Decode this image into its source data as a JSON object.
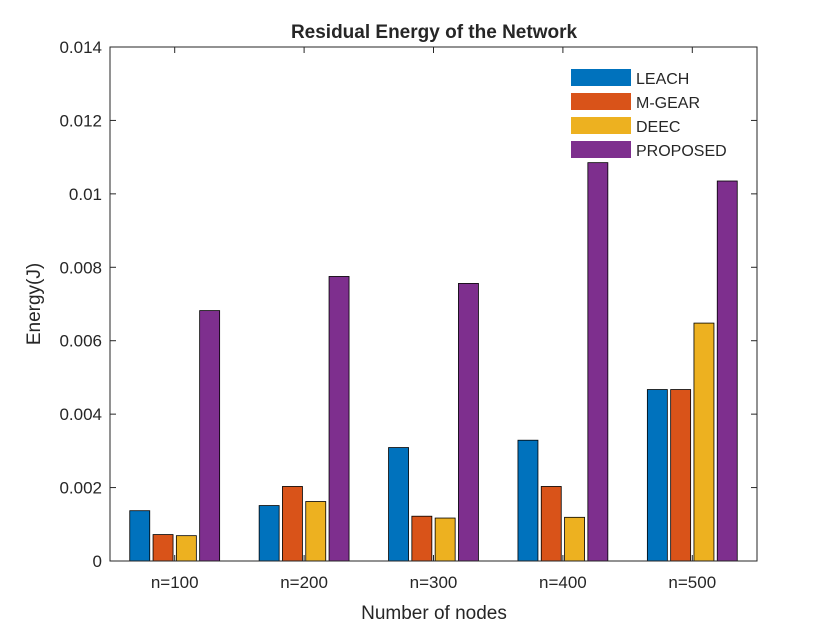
{
  "chart_data": {
    "type": "bar",
    "title": "Residual Energy of the Network",
    "xlabel": "Number of nodes",
    "ylabel": "Energy(J)",
    "categories": [
      "n=100",
      "n=200",
      "n=300",
      "n=400",
      "n=500"
    ],
    "ylim": [
      0,
      0.014
    ],
    "yticks": [
      "0",
      "0.002",
      "0.004",
      "0.006",
      "0.008",
      "0.01",
      "0.012",
      "0.014"
    ],
    "grid": false,
    "legend_position": "top-right",
    "series": [
      {
        "name": "LEACH",
        "color": "#0072bd",
        "values": [
          0.00137,
          0.00151,
          0.00309,
          0.00329,
          0.00467
        ]
      },
      {
        "name": "M-GEAR",
        "color": "#d95319",
        "values": [
          0.00072,
          0.00203,
          0.00122,
          0.00203,
          0.00467
        ]
      },
      {
        "name": "DEEC",
        "color": "#edb120",
        "values": [
          0.00069,
          0.00162,
          0.00117,
          0.00119,
          0.00648
        ]
      },
      {
        "name": "PROPOSED",
        "color": "#7e2f8e",
        "values": [
          0.00682,
          0.00775,
          0.00756,
          0.01085,
          0.01035
        ]
      }
    ]
  }
}
